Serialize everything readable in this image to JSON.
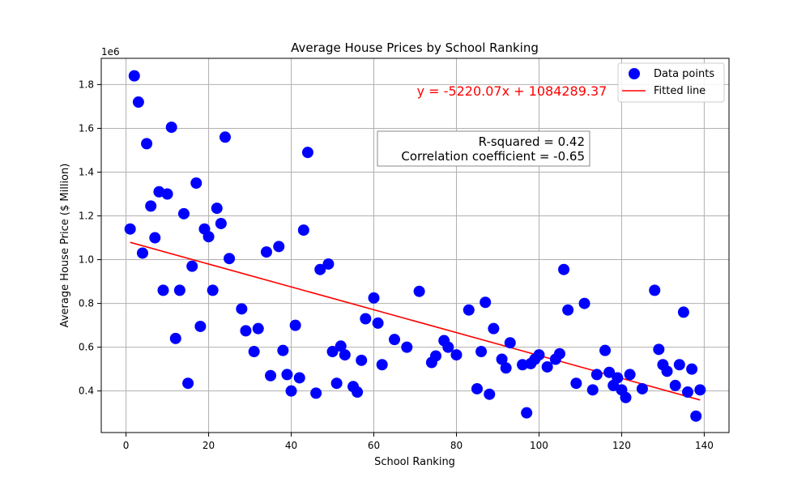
{
  "chart_data": {
    "type": "scatter",
    "title": "Average House Prices by School Ranking",
    "xlabel": "School Ranking",
    "ylabel": "Average House Price ($ Million)",
    "y_offset_label": "1e6",
    "xlim": [
      -6,
      146
    ],
    "ylim": [
      210000,
      1920000
    ],
    "x_ticks": [
      0,
      20,
      40,
      60,
      80,
      100,
      120,
      140
    ],
    "x_tick_labels": [
      "0",
      "20",
      "40",
      "60",
      "80",
      "100",
      "120",
      "140"
    ],
    "y_ticks": [
      400000,
      600000,
      800000,
      1000000,
      1200000,
      1400000,
      1600000,
      1800000
    ],
    "y_tick_labels": [
      "0.4",
      "0.6",
      "0.8",
      "1.0",
      "1.2",
      "1.4",
      "1.6",
      "1.8"
    ],
    "grid": true,
    "legend_position": "top-right",
    "series": [
      {
        "name": "Data points",
        "color": "#0000ff",
        "points": [
          [
            1,
            1140000
          ],
          [
            2,
            1840000
          ],
          [
            3,
            1720000
          ],
          [
            4,
            1030000
          ],
          [
            5,
            1530000
          ],
          [
            6,
            1245000
          ],
          [
            7,
            1100000
          ],
          [
            8,
            1310000
          ],
          [
            9,
            860000
          ],
          [
            10,
            1300000
          ],
          [
            11,
            1605000
          ],
          [
            12,
            640000
          ],
          [
            13,
            860000
          ],
          [
            14,
            1210000
          ],
          [
            15,
            435000
          ],
          [
            16,
            970000
          ],
          [
            17,
            1350000
          ],
          [
            18,
            695000
          ],
          [
            19,
            1140000
          ],
          [
            20,
            1105000
          ],
          [
            21,
            860000
          ],
          [
            22,
            1235000
          ],
          [
            23,
            1165000
          ],
          [
            24,
            1560000
          ],
          [
            25,
            1005000
          ],
          [
            28,
            775000
          ],
          [
            29,
            675000
          ],
          [
            31,
            580000
          ],
          [
            32,
            685000
          ],
          [
            34,
            1035000
          ],
          [
            35,
            470000
          ],
          [
            37,
            1060000
          ],
          [
            38,
            585000
          ],
          [
            39,
            475000
          ],
          [
            40,
            400000
          ],
          [
            41,
            700000
          ],
          [
            42,
            460000
          ],
          [
            43,
            1135000
          ],
          [
            44,
            1490000
          ],
          [
            46,
            390000
          ],
          [
            47,
            955000
          ],
          [
            49,
            980000
          ],
          [
            50,
            580000
          ],
          [
            51,
            435000
          ],
          [
            52,
            605000
          ],
          [
            53,
            565000
          ],
          [
            55,
            420000
          ],
          [
            56,
            395000
          ],
          [
            57,
            540000
          ],
          [
            58,
            730000
          ],
          [
            60,
            825000
          ],
          [
            61,
            710000
          ],
          [
            62,
            520000
          ],
          [
            65,
            635000
          ],
          [
            68,
            600000
          ],
          [
            71,
            855000
          ],
          [
            74,
            530000
          ],
          [
            75,
            560000
          ],
          [
            77,
            630000
          ],
          [
            78,
            600000
          ],
          [
            80,
            565000
          ],
          [
            83,
            770000
          ],
          [
            85,
            410000
          ],
          [
            86,
            580000
          ],
          [
            87,
            805000
          ],
          [
            88,
            385000
          ],
          [
            89,
            685000
          ],
          [
            91,
            545000
          ],
          [
            92,
            505000
          ],
          [
            93,
            620000
          ],
          [
            96,
            520000
          ],
          [
            97,
            300000
          ],
          [
            98,
            525000
          ],
          [
            99,
            545000
          ],
          [
            100,
            565000
          ],
          [
            102,
            510000
          ],
          [
            104,
            545000
          ],
          [
            105,
            570000
          ],
          [
            106,
            955000
          ],
          [
            107,
            770000
          ],
          [
            109,
            435000
          ],
          [
            111,
            800000
          ],
          [
            113,
            405000
          ],
          [
            114,
            475000
          ],
          [
            116,
            585000
          ],
          [
            117,
            485000
          ],
          [
            118,
            425000
          ],
          [
            119,
            460000
          ],
          [
            120,
            405000
          ],
          [
            121,
            370000
          ],
          [
            122,
            475000
          ],
          [
            125,
            410000
          ],
          [
            128,
            860000
          ],
          [
            129,
            590000
          ],
          [
            130,
            520000
          ],
          [
            131,
            490000
          ],
          [
            133,
            425000
          ],
          [
            134,
            520000
          ],
          [
            135,
            760000
          ],
          [
            136,
            395000
          ],
          [
            137,
            500000
          ],
          [
            138,
            285000
          ],
          [
            139,
            405000
          ]
        ]
      },
      {
        "name": "Fitted line",
        "color": "#ff0000",
        "type": "line",
        "slope": -5220.07,
        "intercept": 1084289.37,
        "x_range": [
          1,
          139
        ]
      }
    ],
    "annotations": {
      "equation": "y = -5220.07x + 1084289.37",
      "r_squared": "R-squared = 0.42",
      "correlation": "Correlation coefficient = -0.65"
    }
  }
}
